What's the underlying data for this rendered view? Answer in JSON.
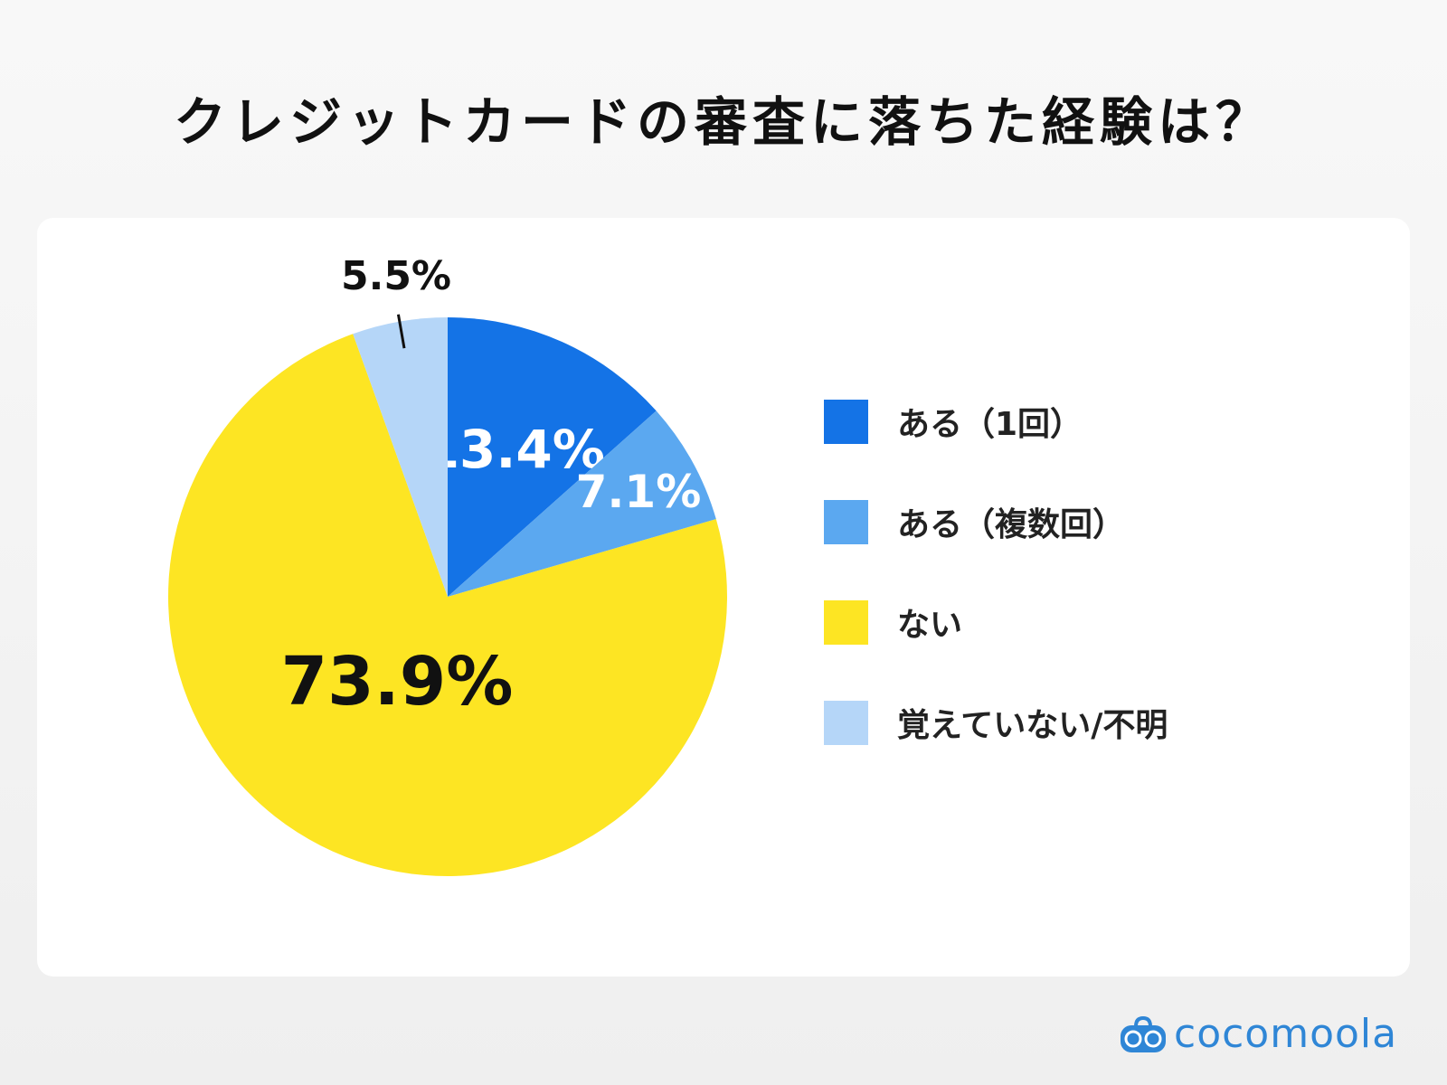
{
  "chart_data": {
    "type": "pie",
    "title": "クレジットカードの審査に落ちた経験は？",
    "start": "top",
    "direction": "clockwise",
    "slices": [
      {
        "label": "ある（1回）",
        "value": 13.4,
        "display": "13.4%",
        "color": "#1473E6",
        "label_color": "#ffffff"
      },
      {
        "label": "ある（複数回）",
        "value": 7.1,
        "display": "7.1%",
        "color": "#5BA8F0",
        "label_color": "#ffffff"
      },
      {
        "label": "ない",
        "value": 73.9,
        "display": "73.9%",
        "color": "#FDE523",
        "label_color": "#111111"
      },
      {
        "label": "覚えていない/不明",
        "value": 5.5,
        "display": "5.5%",
        "color": "#B5D6F8",
        "label_color": "#111111"
      }
    ],
    "legend_position": "right"
  },
  "brand": {
    "name": "cocomoola",
    "color": "#2F86D6"
  }
}
